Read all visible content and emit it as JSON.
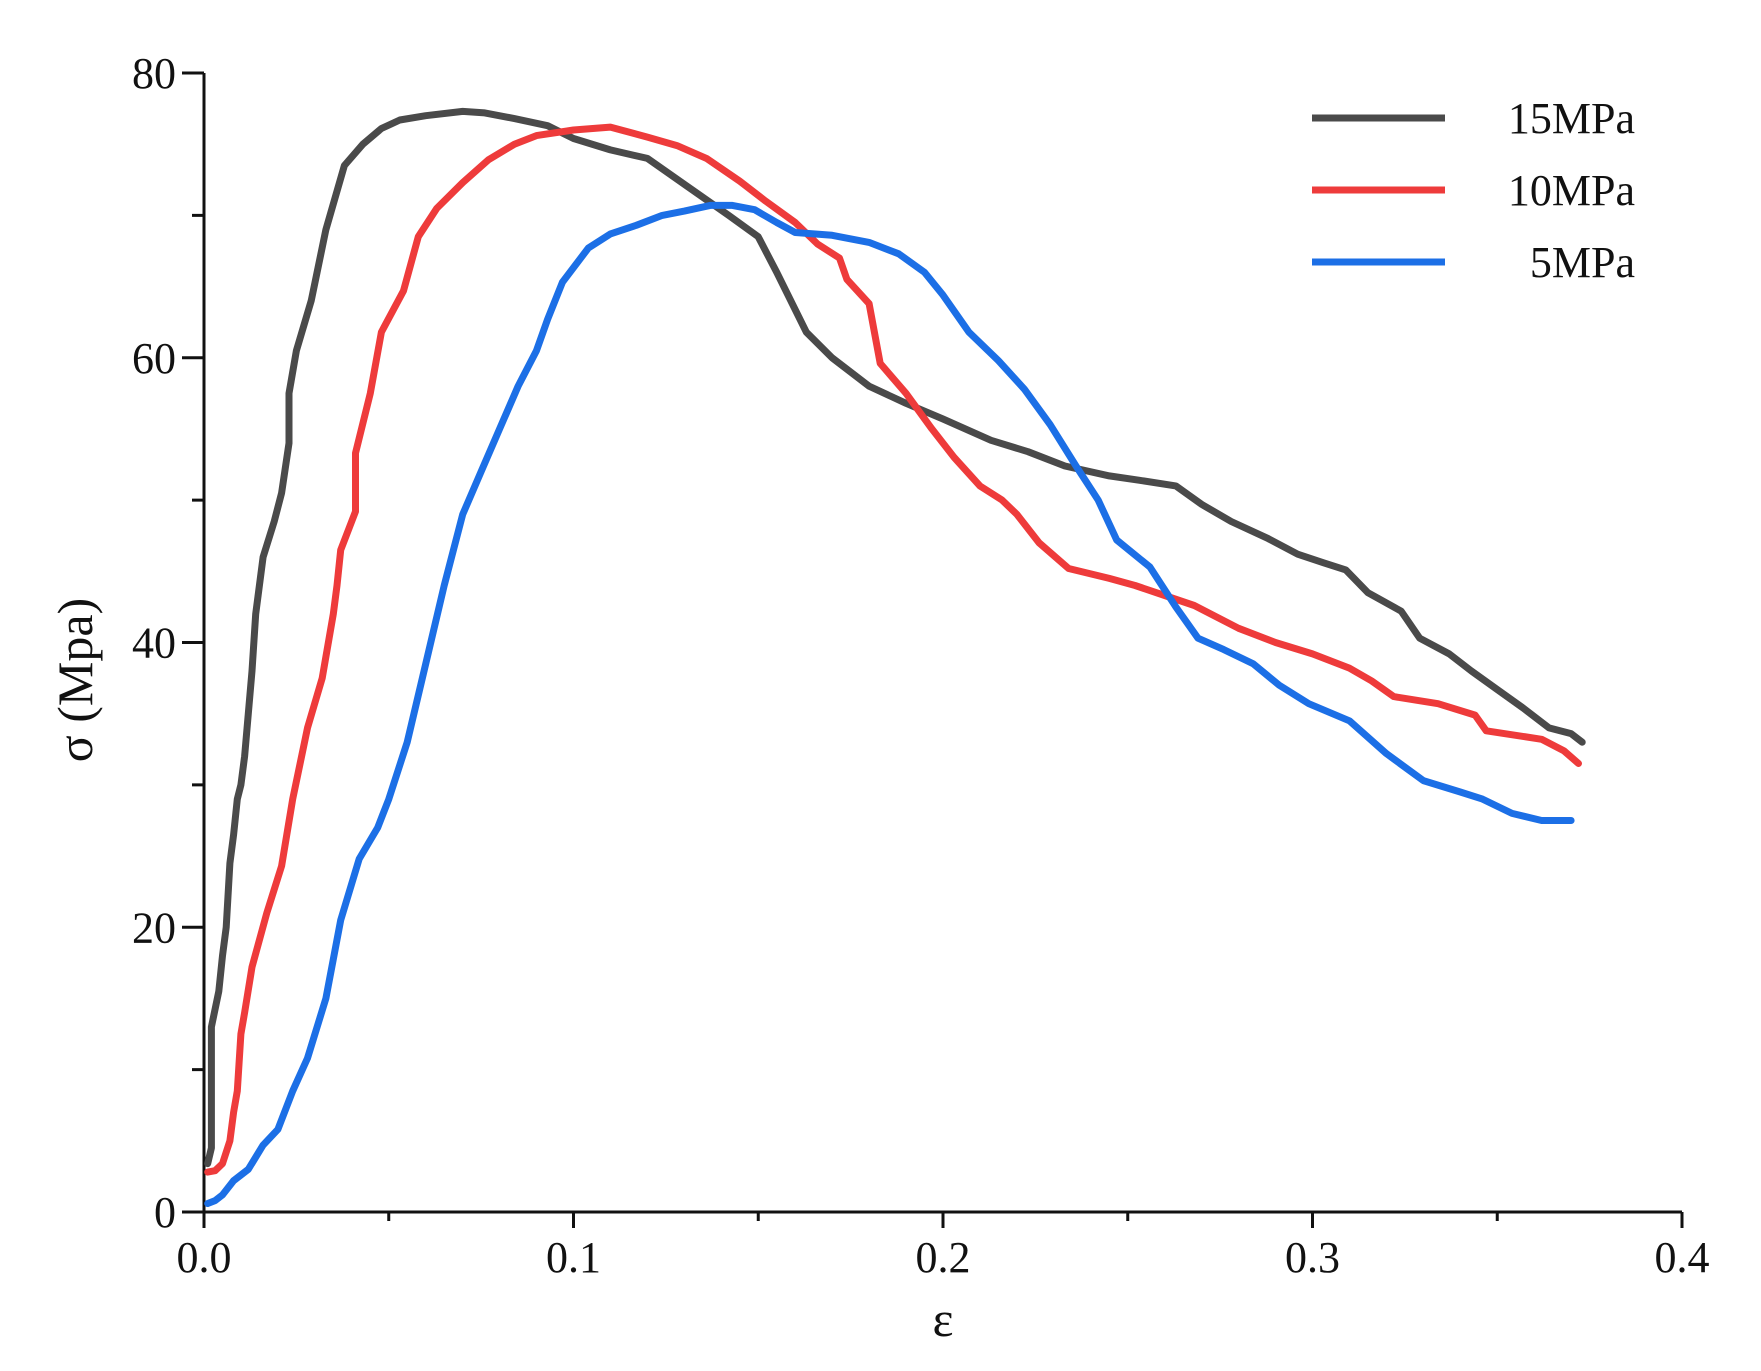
{
  "chart_data": {
    "type": "line",
    "title": "",
    "xlabel": "ε",
    "ylabel": "σ (Mpa)",
    "xlim": [
      0,
      0.4
    ],
    "ylim": [
      0,
      80
    ],
    "xticks": [
      0.0,
      0.1,
      0.2,
      0.3,
      0.4
    ],
    "xtick_labels": [
      "0.0",
      "0.1",
      "0.2",
      "0.3",
      "0.4"
    ],
    "yticks": [
      0,
      20,
      40,
      60,
      80
    ],
    "ytick_labels": [
      "0",
      "20",
      "40",
      "60",
      "80"
    ],
    "grid": false,
    "legend_position": "top-right",
    "series": [
      {
        "name": "15MPa",
        "color": "#4a4a4a",
        "points": [
          [
            0.001,
            3.4
          ],
          [
            0.002,
            4.5
          ],
          [
            0.002,
            13
          ],
          [
            0.004,
            15.5
          ],
          [
            0.005,
            18
          ],
          [
            0.006,
            20
          ],
          [
            0.007,
            24.5
          ],
          [
            0.008,
            26.5
          ],
          [
            0.009,
            29
          ],
          [
            0.01,
            30
          ],
          [
            0.011,
            32
          ],
          [
            0.012,
            35
          ],
          [
            0.013,
            38
          ],
          [
            0.014,
            42
          ],
          [
            0.016,
            46
          ],
          [
            0.019,
            48.5
          ],
          [
            0.021,
            50.5
          ],
          [
            0.023,
            54
          ],
          [
            0.023,
            57.5
          ],
          [
            0.025,
            60.5
          ],
          [
            0.029,
            64
          ],
          [
            0.033,
            69
          ],
          [
            0.038,
            73.5
          ],
          [
            0.043,
            75
          ],
          [
            0.048,
            76.1
          ],
          [
            0.053,
            76.7
          ],
          [
            0.06,
            77
          ],
          [
            0.07,
            77.3
          ],
          [
            0.076,
            77.2
          ],
          [
            0.084,
            76.8
          ],
          [
            0.093,
            76.3
          ],
          [
            0.1,
            75.4
          ],
          [
            0.11,
            74.6
          ],
          [
            0.12,
            74
          ],
          [
            0.131,
            72
          ],
          [
            0.142,
            70
          ],
          [
            0.15,
            68.5
          ],
          [
            0.155,
            66
          ],
          [
            0.163,
            61.8
          ],
          [
            0.17,
            60
          ],
          [
            0.18,
            58
          ],
          [
            0.19,
            56.8
          ],
          [
            0.2,
            55.7
          ],
          [
            0.213,
            54.2
          ],
          [
            0.223,
            53.4
          ],
          [
            0.233,
            52.4
          ],
          [
            0.245,
            51.7
          ],
          [
            0.253,
            51.4
          ],
          [
            0.263,
            51
          ],
          [
            0.27,
            49.7
          ],
          [
            0.278,
            48.5
          ],
          [
            0.288,
            47.3
          ],
          [
            0.296,
            46.2
          ],
          [
            0.303,
            45.6
          ],
          [
            0.309,
            45.1
          ],
          [
            0.315,
            43.5
          ],
          [
            0.324,
            42.2
          ],
          [
            0.329,
            40.3
          ],
          [
            0.337,
            39.2
          ],
          [
            0.343,
            38
          ],
          [
            0.35,
            36.7
          ],
          [
            0.357,
            35.4
          ],
          [
            0.364,
            34
          ],
          [
            0.37,
            33.6
          ],
          [
            0.373,
            33
          ]
        ]
      },
      {
        "name": "10MPa",
        "color": "#ee3b3b",
        "points": [
          [
            0.001,
            2.8
          ],
          [
            0.003,
            2.9
          ],
          [
            0.005,
            3.4
          ],
          [
            0.007,
            5
          ],
          [
            0.008,
            7
          ],
          [
            0.009,
            8.5
          ],
          [
            0.01,
            12.5
          ],
          [
            0.011,
            14
          ],
          [
            0.013,
            17.2
          ],
          [
            0.017,
            21
          ],
          [
            0.021,
            24.3
          ],
          [
            0.024,
            29
          ],
          [
            0.028,
            34
          ],
          [
            0.032,
            37.5
          ],
          [
            0.035,
            42
          ],
          [
            0.036,
            44
          ],
          [
            0.037,
            46.5
          ],
          [
            0.041,
            49.2
          ],
          [
            0.041,
            53.3
          ],
          [
            0.045,
            57.5
          ],
          [
            0.048,
            61.8
          ],
          [
            0.054,
            64.7
          ],
          [
            0.058,
            68.5
          ],
          [
            0.063,
            70.5
          ],
          [
            0.07,
            72.3
          ],
          [
            0.077,
            73.9
          ],
          [
            0.084,
            75
          ],
          [
            0.09,
            75.6
          ],
          [
            0.1,
            76
          ],
          [
            0.11,
            76.2
          ],
          [
            0.12,
            75.5
          ],
          [
            0.128,
            74.9
          ],
          [
            0.136,
            74
          ],
          [
            0.145,
            72.4
          ],
          [
            0.152,
            71
          ],
          [
            0.16,
            69.5
          ],
          [
            0.166,
            68
          ],
          [
            0.172,
            67
          ],
          [
            0.174,
            65.5
          ],
          [
            0.18,
            63.8
          ],
          [
            0.183,
            59.6
          ],
          [
            0.19,
            57.5
          ],
          [
            0.197,
            55
          ],
          [
            0.203,
            53
          ],
          [
            0.21,
            51
          ],
          [
            0.216,
            50
          ],
          [
            0.22,
            49
          ],
          [
            0.226,
            47
          ],
          [
            0.234,
            45.2
          ],
          [
            0.245,
            44.5
          ],
          [
            0.252,
            44
          ],
          [
            0.26,
            43.3
          ],
          [
            0.268,
            42.6
          ],
          [
            0.28,
            41
          ],
          [
            0.29,
            40
          ],
          [
            0.3,
            39.2
          ],
          [
            0.31,
            38.2
          ],
          [
            0.316,
            37.3
          ],
          [
            0.322,
            36.2
          ],
          [
            0.334,
            35.7
          ],
          [
            0.344,
            34.9
          ],
          [
            0.347,
            33.8
          ],
          [
            0.362,
            33.2
          ],
          [
            0.368,
            32.4
          ],
          [
            0.372,
            31.5
          ]
        ]
      },
      {
        "name": "5MPa",
        "color": "#1c6fe6",
        "points": [
          [
            0.001,
            0.6
          ],
          [
            0.003,
            0.8
          ],
          [
            0.005,
            1.2
          ],
          [
            0.008,
            2.2
          ],
          [
            0.012,
            3
          ],
          [
            0.016,
            4.7
          ],
          [
            0.02,
            5.8
          ],
          [
            0.024,
            8.5
          ],
          [
            0.028,
            10.8
          ],
          [
            0.033,
            15
          ],
          [
            0.037,
            20.5
          ],
          [
            0.042,
            24.8
          ],
          [
            0.047,
            27
          ],
          [
            0.05,
            29
          ],
          [
            0.055,
            33
          ],
          [
            0.06,
            38.5
          ],
          [
            0.065,
            44
          ],
          [
            0.07,
            49
          ],
          [
            0.075,
            52
          ],
          [
            0.08,
            55
          ],
          [
            0.085,
            58
          ],
          [
            0.09,
            60.5
          ],
          [
            0.093,
            62.7
          ],
          [
            0.097,
            65.3
          ],
          [
            0.104,
            67.7
          ],
          [
            0.11,
            68.7
          ],
          [
            0.117,
            69.3
          ],
          [
            0.124,
            70
          ],
          [
            0.13,
            70.3
          ],
          [
            0.137,
            70.7
          ],
          [
            0.143,
            70.7
          ],
          [
            0.149,
            70.4
          ],
          [
            0.155,
            69.5
          ],
          [
            0.16,
            68.8
          ],
          [
            0.17,
            68.6
          ],
          [
            0.18,
            68.1
          ],
          [
            0.188,
            67.3
          ],
          [
            0.195,
            66
          ],
          [
            0.2,
            64.4
          ],
          [
            0.207,
            61.8
          ],
          [
            0.215,
            59.8
          ],
          [
            0.222,
            57.8
          ],
          [
            0.229,
            55.3
          ],
          [
            0.236,
            52.4
          ],
          [
            0.242,
            50
          ],
          [
            0.247,
            47.2
          ],
          [
            0.256,
            45.3
          ],
          [
            0.263,
            42.5
          ],
          [
            0.269,
            40.3
          ],
          [
            0.276,
            39.5
          ],
          [
            0.284,
            38.5
          ],
          [
            0.291,
            37
          ],
          [
            0.299,
            35.7
          ],
          [
            0.31,
            34.5
          ],
          [
            0.32,
            32.2
          ],
          [
            0.33,
            30.3
          ],
          [
            0.34,
            29.5
          ],
          [
            0.346,
            29
          ],
          [
            0.354,
            28
          ],
          [
            0.362,
            27.5
          ],
          [
            0.37,
            27.5
          ]
        ]
      }
    ]
  }
}
